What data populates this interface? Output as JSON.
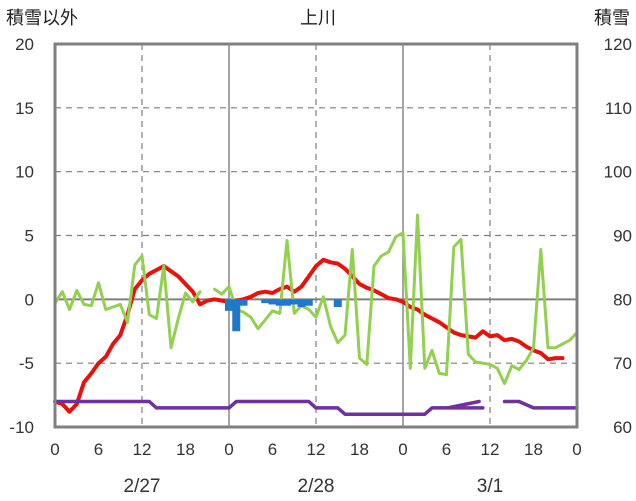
{
  "chart_data": {
    "type": "line",
    "title": "上川",
    "ylabel_left": "積雪以外",
    "ylabel_right": "積雪",
    "ylim_left": [
      -10,
      20
    ],
    "ylim_right": [
      60,
      120
    ],
    "left_ticks": [
      "20",
      "15",
      "10",
      "5",
      "0",
      "-5",
      "-10"
    ],
    "right_ticks": [
      "120",
      "110",
      "100",
      "90",
      "80",
      "70",
      "60"
    ],
    "x_range_hours": [
      0,
      72
    ],
    "x_ticks": [
      "0",
      "6",
      "12",
      "18",
      "0",
      "6",
      "12",
      "18",
      "0",
      "6",
      "12",
      "18",
      "0"
    ],
    "date_labels": [
      {
        "text": "2/27",
        "x": 12
      },
      {
        "text": "2/28",
        "x": 36
      },
      {
        "text": "3/1",
        "x": 60
      }
    ],
    "colors": {
      "red": "#e8120c",
      "green": "#92d050",
      "blue": "#1f78c8",
      "purple": "#7030a0",
      "frame": "#808080",
      "zero_line": "#7f7f7f",
      "day_line": "#7f7f7f",
      "grid_dash": "#7f7f7f"
    },
    "series": [
      {
        "color": "red",
        "axis": "left",
        "x": [
          0,
          1,
          2,
          3,
          4,
          5,
          6,
          7,
          8,
          9,
          10,
          11,
          12,
          13,
          14,
          15,
          16,
          17,
          18,
          19,
          20,
          21,
          22,
          23,
          24,
          25,
          26,
          27,
          28,
          29,
          30,
          31,
          32,
          33,
          34,
          35,
          36,
          37,
          38,
          39,
          40,
          41,
          42,
          43,
          44,
          45,
          46,
          47,
          48,
          49,
          50,
          51,
          52,
          53,
          54,
          55,
          56,
          57,
          58,
          59,
          60,
          61,
          62,
          63,
          64,
          65,
          66,
          67,
          68,
          69,
          70
        ],
        "y": [
          -8.0,
          -8.2,
          -8.8,
          -8.2,
          -6.5,
          -5.8,
          -5.0,
          -4.5,
          -3.5,
          -2.8,
          -1.2,
          0.8,
          1.5,
          2.0,
          2.3,
          2.6,
          2.2,
          1.8,
          1.2,
          0.6,
          -0.4,
          -0.1,
          0.0,
          -0.1,
          -0.2,
          -0.1,
          0.0,
          0.2,
          0.5,
          0.6,
          0.5,
          0.8,
          1.0,
          0.6,
          1.0,
          1.8,
          2.6,
          3.1,
          2.9,
          2.8,
          2.4,
          1.8,
          1.2,
          0.9,
          0.7,
          0.4,
          0.1,
          0.0,
          -0.2,
          -0.6,
          -0.8,
          -1.2,
          -1.5,
          -1.8,
          -2.2,
          -2.6,
          -2.8,
          -2.9,
          -3.0,
          -2.5,
          -2.9,
          -2.8,
          -3.2,
          -3.1,
          -3.3,
          -3.7,
          -4.0,
          -4.2,
          -4.7,
          -4.6,
          -4.6
        ]
      },
      {
        "color": "green",
        "axis": "left",
        "segments": [
          {
            "x": [
              0,
              1,
              2,
              3,
              4,
              5,
              6,
              7,
              8,
              9,
              10,
              11,
              12,
              13,
              14,
              15,
              16,
              17,
              18,
              19,
              20
            ],
            "y": [
              -0.3,
              0.6,
              -0.8,
              0.7,
              -0.4,
              -0.5,
              1.3,
              -0.8,
              -0.6,
              -0.4,
              -1.8,
              2.7,
              3.4,
              -1.2,
              -1.5,
              2.6,
              -3.8,
              -1.5,
              0.5,
              -0.2,
              0.6
            ]
          },
          {
            "x": [
              22,
              23,
              24,
              25,
              26,
              27,
              28,
              29,
              30,
              31,
              32,
              33,
              34,
              35,
              36,
              37,
              38,
              39,
              40,
              41,
              42,
              43,
              44,
              45,
              46,
              47,
              48,
              49,
              50,
              51,
              52,
              53,
              54,
              55,
              56,
              57,
              58,
              59,
              60,
              61,
              62,
              63,
              64,
              65,
              66,
              67,
              68,
              69,
              70,
              71,
              72
            ],
            "y": [
              0.8,
              0.4,
              1.0,
              -0.8,
              -1.0,
              -1.4,
              -2.3,
              -1.6,
              -0.9,
              -1.1,
              4.6,
              -1.1,
              -0.5,
              -0.8,
              -1.4,
              0.2,
              -2.1,
              -3.4,
              -2.8,
              3.9,
              -4.6,
              -5.1,
              2.6,
              3.4,
              3.7,
              4.9,
              5.2,
              -5.4,
              6.6,
              -5.4,
              -4.0,
              -5.8,
              -5.9,
              4.1,
              4.7,
              -4.3,
              -4.9,
              -5.0,
              -5.1,
              -5.4,
              -6.6,
              -5.2,
              -5.5,
              -4.8,
              -3.8,
              3.9,
              -3.8,
              -3.8,
              -3.5,
              -3.2,
              -2.6
            ]
          }
        ]
      },
      {
        "color": "blue",
        "axis": "left",
        "bars": [
          {
            "x": 24,
            "y": -0.9
          },
          {
            "x": 25,
            "y": -2.5
          },
          {
            "x": 26,
            "y": -0.5
          },
          {
            "x": 29,
            "y": -0.3
          },
          {
            "x": 30,
            "y": -0.4
          },
          {
            "x": 31,
            "y": -0.5
          },
          {
            "x": 32,
            "y": -0.5
          },
          {
            "x": 33,
            "y": -0.4
          },
          {
            "x": 34,
            "y": -0.6
          },
          {
            "x": 35,
            "y": -0.5
          },
          {
            "x": 39,
            "y": -0.6
          }
        ]
      },
      {
        "color": "purple",
        "axis": "right",
        "segments": [
          {
            "x": [
              0,
              12,
              13,
              14,
              15,
              22,
              23,
              24,
              25,
              26,
              27,
              28,
              29,
              30,
              31,
              32,
              33,
              34,
              35,
              36,
              37,
              38,
              39,
              40,
              41,
              42,
              43,
              44,
              45,
              46,
              47,
              48,
              49,
              50,
              51,
              52,
              53,
              54,
              55,
              56,
              57,
              58,
              59
            ],
            "y": [
              64,
              64,
              64,
              63,
              63,
              63,
              63,
              63,
              64,
              64,
              64,
              64,
              64,
              64,
              64,
              64,
              64,
              64,
              64,
              63,
              63,
              63,
              63,
              62,
              62,
              62,
              62,
              62,
              62,
              62,
              62,
              62,
              62,
              62,
              62,
              63,
              63,
              63,
              63,
              63,
              63,
              63,
              63
            ]
          },
          {
            "x": [
              54.2,
              58.5
            ],
            "y": [
              63,
              64
            ]
          },
          {
            "x": [
              62,
              64,
              66,
              72
            ],
            "y": [
              64,
              64,
              63,
              63
            ]
          }
        ]
      }
    ]
  }
}
